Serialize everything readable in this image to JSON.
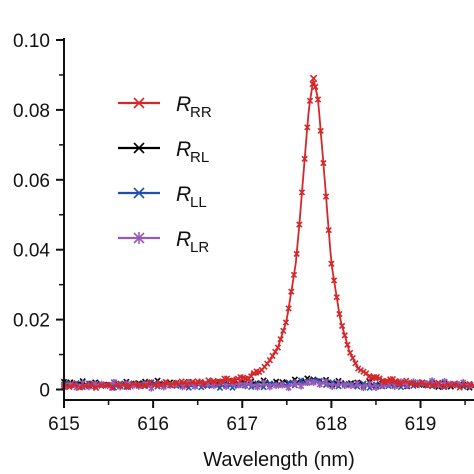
{
  "chart_data": {
    "type": "line",
    "title": "",
    "xlabel": "Wavelength (nm)",
    "ylabel": "",
    "xlim": [
      615,
      619.6
    ],
    "ylim": [
      -0.003,
      0.1
    ],
    "x_ticks": [
      615,
      616,
      617,
      618,
      619
    ],
    "x_tick_labels": [
      "615",
      "616",
      "617",
      "618",
      "619"
    ],
    "y_ticks": [
      0,
      0.02,
      0.04,
      0.06,
      0.08,
      0.1
    ],
    "y_tick_labels": [
      "0",
      "0.02",
      "0.04",
      "0.06",
      "0.08",
      "0.10"
    ],
    "grid": false,
    "legend_position": "upper-left",
    "marker": "x",
    "series": [
      {
        "name": "R_RR",
        "label_main": "R",
        "label_sub": "RR",
        "color": "#d62728",
        "x": [
          615.0,
          615.5,
          616.0,
          616.5,
          617.0,
          617.2,
          617.3,
          617.4,
          617.5,
          617.6,
          617.65,
          617.7,
          617.75,
          617.8,
          617.85,
          617.9,
          617.95,
          618.0,
          618.1,
          618.2,
          618.3,
          618.5,
          619.0,
          619.6
        ],
        "y": [
          0.001,
          0.001,
          0.0015,
          0.002,
          0.003,
          0.005,
          0.008,
          0.012,
          0.02,
          0.036,
          0.05,
          0.066,
          0.081,
          0.089,
          0.083,
          0.068,
          0.052,
          0.036,
          0.02,
          0.011,
          0.006,
          0.003,
          0.0015,
          0.001
        ]
      },
      {
        "name": "R_RL",
        "label_main": "R",
        "label_sub": "RL",
        "color": "#000000",
        "x": [
          615.0,
          615.5,
          616.0,
          616.5,
          617.0,
          617.5,
          617.8,
          618.0,
          618.5,
          619.0,
          619.6
        ],
        "y": [
          0.002,
          0.0015,
          0.002,
          0.0015,
          0.002,
          0.002,
          0.003,
          0.002,
          0.0015,
          0.0015,
          0.001
        ]
      },
      {
        "name": "R_LL",
        "label_main": "R",
        "label_sub": "LL",
        "color": "#1f4fb4",
        "x": [
          615.0,
          615.5,
          616.0,
          616.5,
          617.0,
          617.5,
          617.8,
          618.0,
          618.5,
          619.0,
          619.6
        ],
        "y": [
          0.0015,
          0.001,
          0.0015,
          0.001,
          0.001,
          0.0015,
          0.0025,
          0.0015,
          0.001,
          0.0015,
          0.001
        ]
      },
      {
        "name": "R_LR",
        "label_main": "R",
        "label_sub": "LR",
        "color": "#9b59b6",
        "x": [
          615.0,
          615.5,
          616.0,
          616.5,
          617.0,
          617.5,
          617.8,
          618.0,
          618.5,
          619.0,
          619.6
        ],
        "y": [
          0.001,
          0.0015,
          0.001,
          0.0015,
          0.0015,
          0.001,
          0.002,
          0.0015,
          0.001,
          0.002,
          0.0015
        ]
      }
    ]
  }
}
